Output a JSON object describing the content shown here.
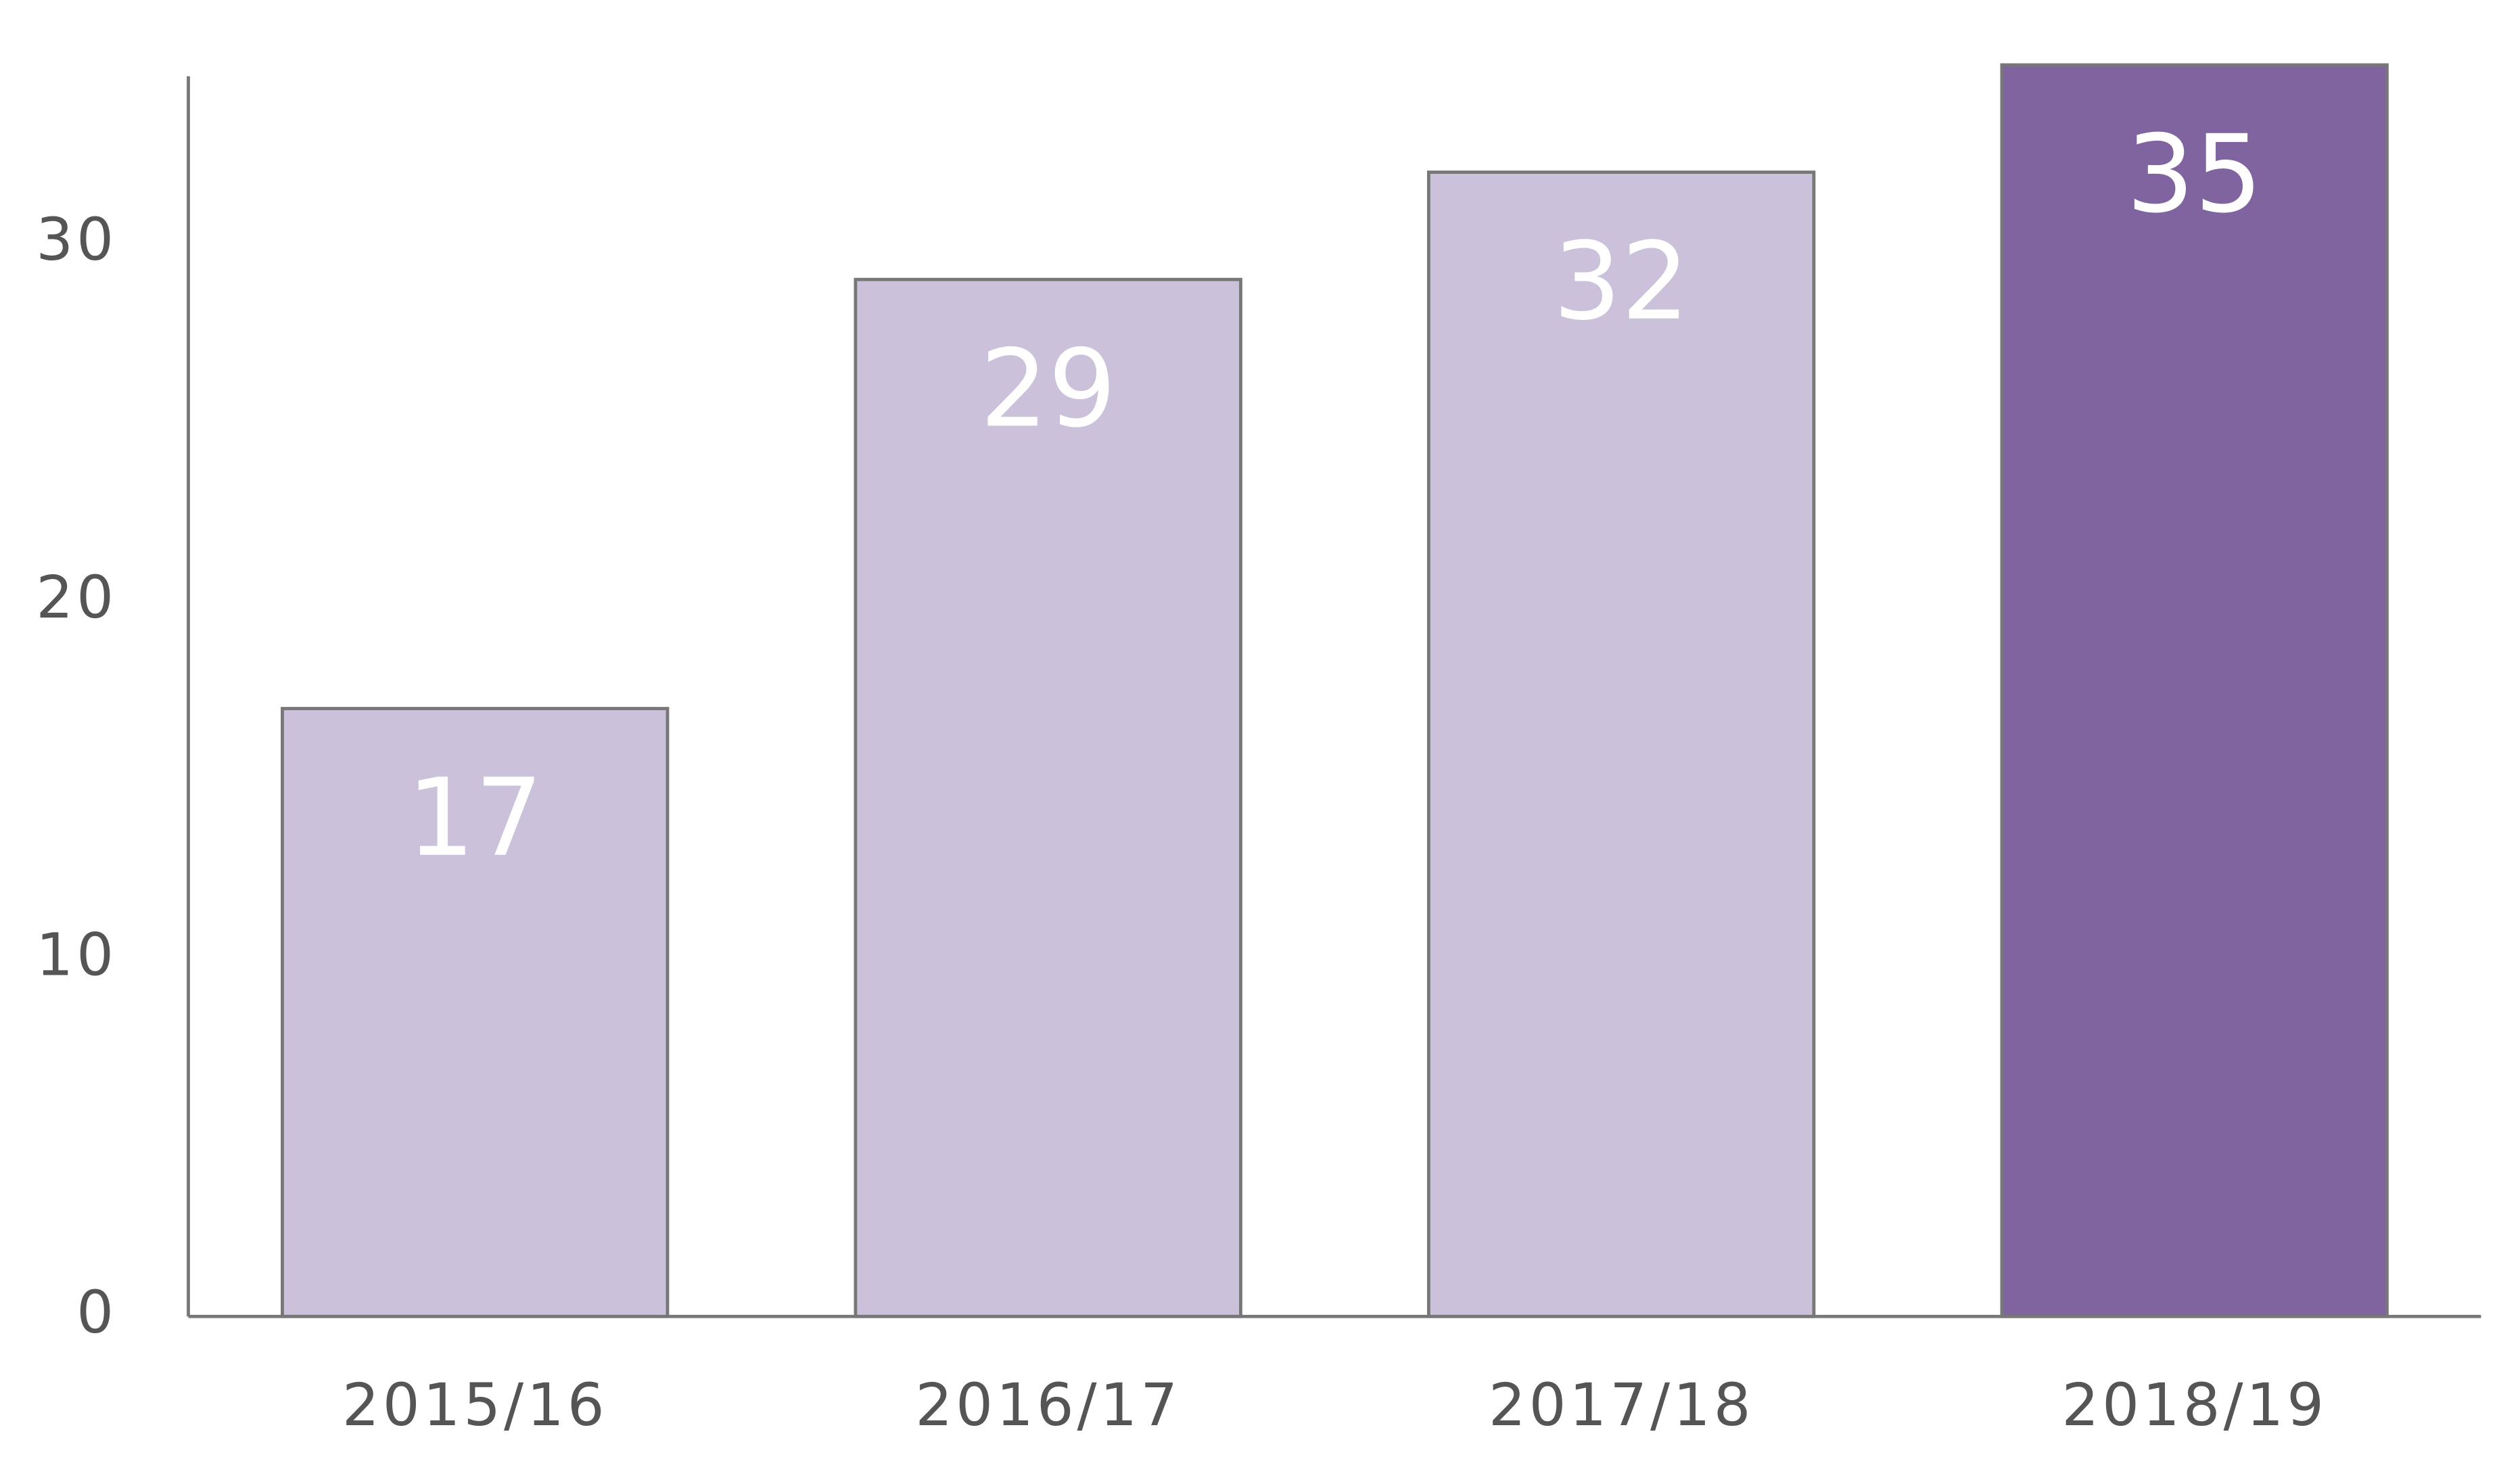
{
  "chart_data": {
    "type": "bar",
    "categories": [
      "2015/16",
      "2016/17",
      "2017/18",
      "2018/19"
    ],
    "values": [
      17,
      29,
      32,
      35
    ],
    "colors": [
      "#cbc1da",
      "#cbc1da",
      "#cbc1da",
      "#8064a0"
    ],
    "ylim": [
      0,
      35
    ],
    "yticks": [
      0,
      10,
      20,
      30
    ],
    "grid": false
  }
}
